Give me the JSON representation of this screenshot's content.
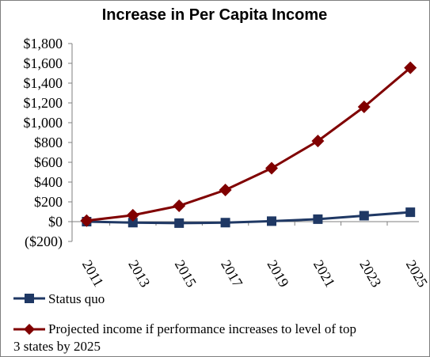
{
  "chart_data": {
    "type": "line",
    "title": "Increase in Per Capita Income",
    "xlabel": "",
    "ylabel": "",
    "x": [
      "2011",
      "2013",
      "2015",
      "2017",
      "2019",
      "2021",
      "2023",
      "2025"
    ],
    "y_tick_labels": [
      "$1,800",
      "$1,600",
      "$1,400",
      "$1,200",
      "$1,000",
      "$800",
      "$600",
      "$400",
      "$200",
      "$0",
      "($200)"
    ],
    "y_tick_values": [
      1800,
      1600,
      1400,
      1200,
      1000,
      800,
      600,
      400,
      200,
      0,
      -200
    ],
    "ylim": [
      -200,
      1800
    ],
    "grid": false,
    "legend_position": "bottom",
    "series": [
      {
        "name": "Status quo",
        "color": "#1f3864",
        "marker": "square",
        "values": [
          0,
          -10,
          -15,
          -10,
          5,
          25,
          60,
          95
        ]
      },
      {
        "name": "Projected income if performance increases to level of top",
        "name_line2": "3 states by 2025",
        "color": "#800000",
        "marker": "diamond",
        "values": [
          10,
          65,
          160,
          320,
          540,
          815,
          1160,
          1555
        ]
      }
    ]
  }
}
